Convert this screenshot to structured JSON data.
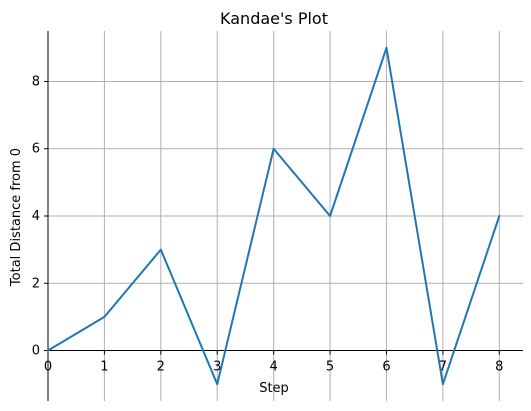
{
  "chart_data": {
    "type": "line",
    "title": "Kandae's Plot",
    "xlabel": "Step",
    "ylabel": "Total Distance from 0",
    "x": [
      0,
      1,
      2,
      3,
      4,
      5,
      6,
      7,
      8
    ],
    "series": [
      {
        "values": [
          0,
          1,
          3,
          -1,
          6,
          4,
          9,
          -1,
          4
        ]
      }
    ],
    "xlim": [
      0,
      8.42
    ],
    "ylim": [
      -1.5,
      9.5
    ],
    "x_ticks": [
      "0",
      "1",
      "2",
      "3",
      "4",
      "5",
      "6",
      "7",
      "8"
    ],
    "y_ticks": [
      "0",
      "2",
      "4",
      "6",
      "8"
    ],
    "grid": true,
    "line_color": "#1f77b4",
    "grid_color": "#b0b0b0"
  }
}
